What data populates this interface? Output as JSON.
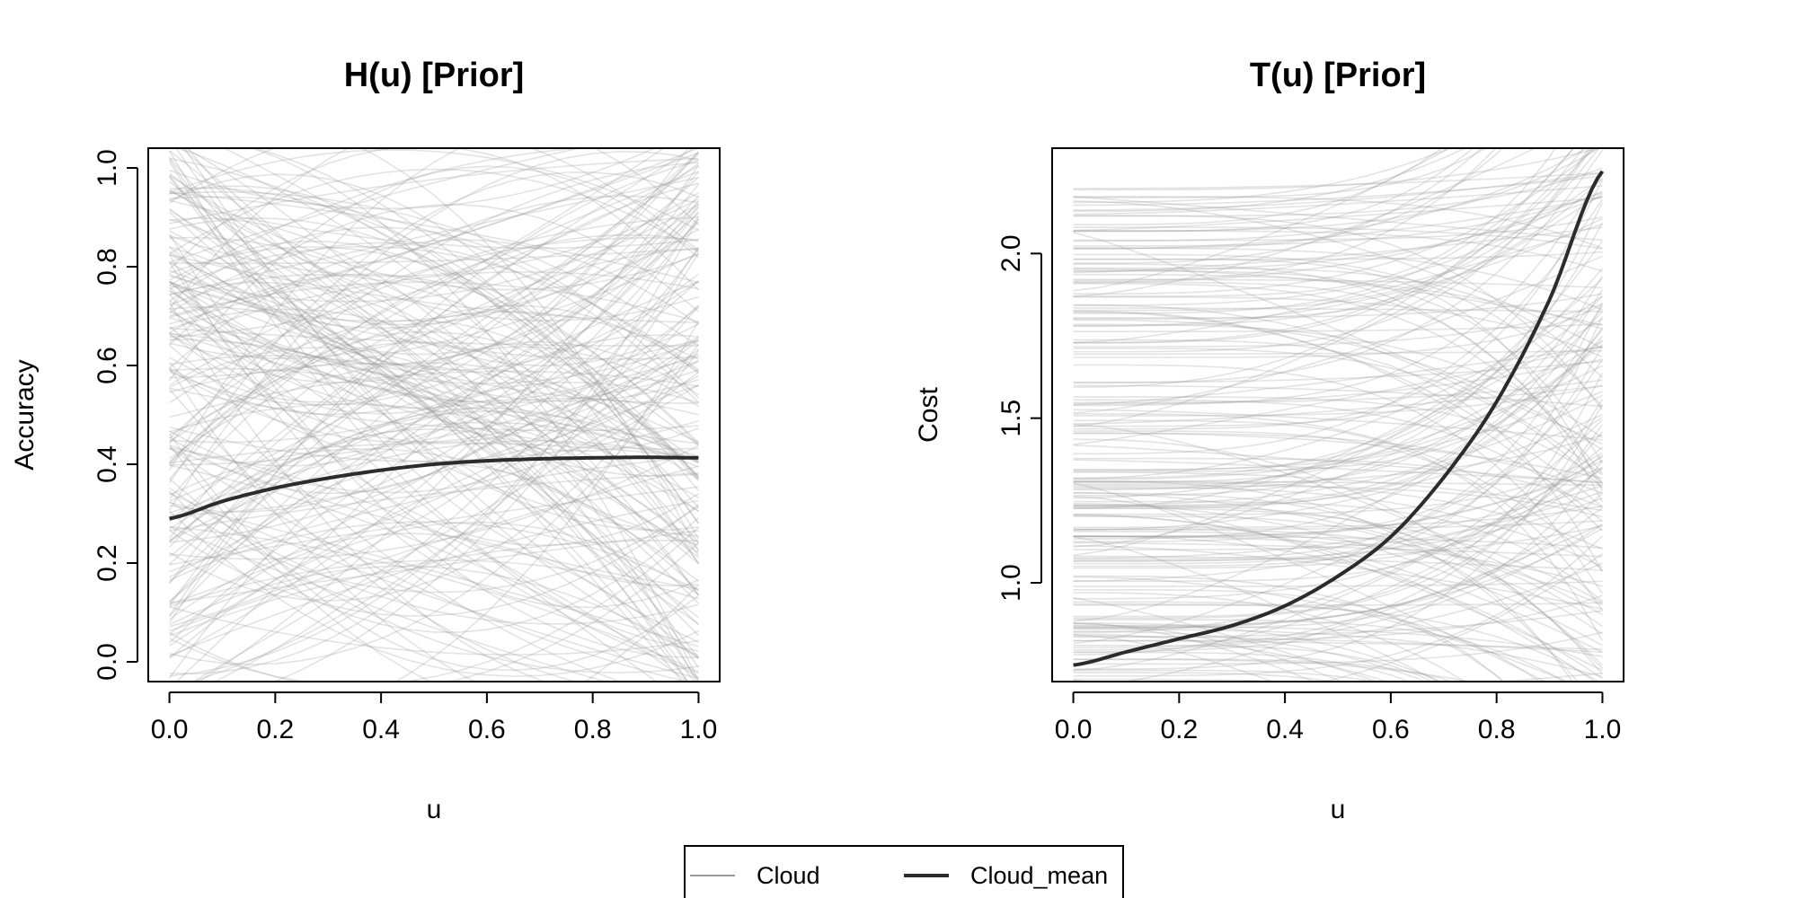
{
  "chart_data": [
    {
      "type": "line",
      "title": "H(u) [Prior]",
      "xlabel": "u",
      "ylabel": "Accuracy",
      "xlim": [
        -0.04,
        1.04
      ],
      "ylim": [
        -0.04,
        1.04
      ],
      "x_ticks": [
        "0.0",
        "0.2",
        "0.4",
        "0.6",
        "0.8",
        "1.0"
      ],
      "x_tick_values": [
        0,
        0.2,
        0.4,
        0.6,
        0.8,
        1.0
      ],
      "y_ticks": [
        "0.0",
        "0.2",
        "0.4",
        "0.6",
        "0.8",
        "1.0"
      ],
      "y_tick_values": [
        0,
        0.2,
        0.4,
        0.6,
        0.8,
        1.0
      ],
      "grid": false,
      "cloud": {
        "curve_count": 220,
        "color": "#9a9a9a",
        "opacity": 0.28
      },
      "series": [
        {
          "name": "Cloud_mean",
          "x": [
            0,
            0.1,
            0.2,
            0.3,
            0.4,
            0.5,
            0.6,
            0.7,
            0.8,
            0.9,
            1.0
          ],
          "y": [
            0.29,
            0.325,
            0.352,
            0.372,
            0.388,
            0.4,
            0.407,
            0.411,
            0.413,
            0.414,
            0.413
          ]
        }
      ]
    },
    {
      "type": "line",
      "title": "T(u) [Prior]",
      "xlabel": "u",
      "ylabel": "Cost",
      "xlim": [
        -0.04,
        1.04
      ],
      "ylim": [
        0.7,
        2.32
      ],
      "x_ticks": [
        "0.0",
        "0.2",
        "0.4",
        "0.6",
        "0.8",
        "1.0"
      ],
      "x_tick_values": [
        0,
        0.2,
        0.4,
        0.6,
        0.8,
        1.0
      ],
      "y_ticks": [
        "1.0",
        "1.5",
        "2.0"
      ],
      "y_tick_values": [
        1.0,
        1.5,
        2.0
      ],
      "grid": false,
      "cloud": {
        "curve_count": 220,
        "color": "#9a9a9a",
        "opacity": 0.28
      },
      "series": [
        {
          "name": "Cloud_mean",
          "x": [
            0,
            0.1,
            0.2,
            0.3,
            0.4,
            0.5,
            0.6,
            0.7,
            0.8,
            0.9,
            1.0
          ],
          "y": [
            0.75,
            0.79,
            0.83,
            0.87,
            0.93,
            1.02,
            1.14,
            1.32,
            1.55,
            1.86,
            2.25
          ]
        }
      ]
    }
  ],
  "legend": {
    "position": "bottom-center",
    "items": [
      {
        "label": "Cloud",
        "style": "thin-grey"
      },
      {
        "label": "Cloud_mean",
        "style": "thick-dark"
      }
    ]
  },
  "colors": {
    "mean_line": "#2b2b2b",
    "cloud_line": "#9a9a9a",
    "axis": "#000000"
  }
}
